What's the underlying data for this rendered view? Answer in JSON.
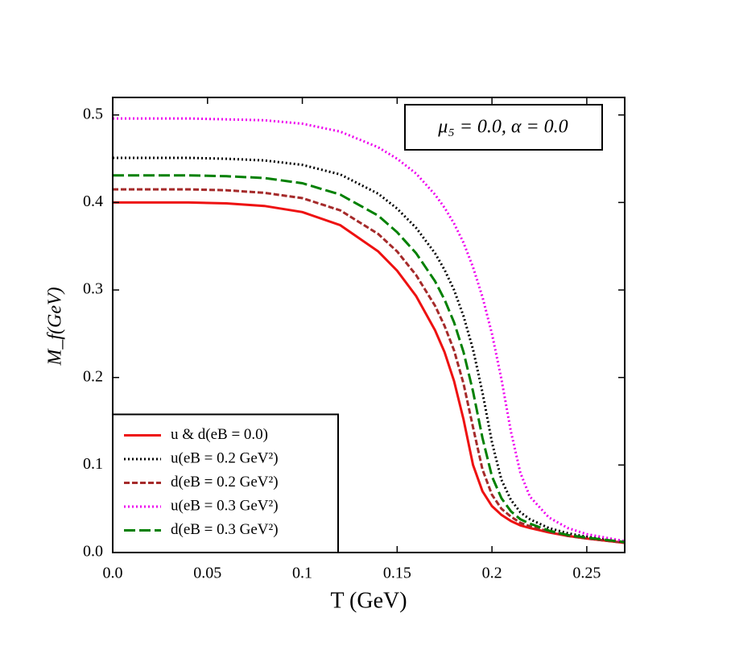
{
  "chart_data": {
    "type": "line",
    "xlabel": "T (GeV)",
    "ylabel": "M_f(GeV)",
    "annotation": "μ₅ = 0.0, α = 0.0",
    "x": [
      0,
      0.02,
      0.04,
      0.06,
      0.08,
      0.1,
      0.12,
      0.14,
      0.15,
      0.16,
      0.17,
      0.175,
      0.18,
      0.185,
      0.19,
      0.195,
      0.2,
      0.205,
      0.21,
      0.215,
      0.22,
      0.23,
      0.24,
      0.25,
      0.27
    ],
    "series": [
      {
        "name": "u & d(eB = 0.0)",
        "color": "#ee1111",
        "dash": "solid",
        "values": [
          0.4,
          0.4,
          0.4,
          0.399,
          0.396,
          0.389,
          0.374,
          0.344,
          0.322,
          0.293,
          0.254,
          0.229,
          0.196,
          0.152,
          0.1,
          0.07,
          0.053,
          0.043,
          0.036,
          0.031,
          0.028,
          0.023,
          0.019,
          0.016,
          0.011
        ]
      },
      {
        "name": "u(eB = 0.2 GeV²)",
        "color": "#000000",
        "dash": "dotted",
        "values": [
          0.451,
          0.451,
          0.451,
          0.45,
          0.448,
          0.443,
          0.432,
          0.41,
          0.393,
          0.371,
          0.342,
          0.323,
          0.3,
          0.27,
          0.232,
          0.183,
          0.126,
          0.083,
          0.06,
          0.046,
          0.038,
          0.028,
          0.022,
          0.018,
          0.012
        ]
      },
      {
        "name": "d(eB = 0.2 GeV²)",
        "color": "#a52a2a",
        "dash": "dashed",
        "values": [
          0.415,
          0.415,
          0.415,
          0.414,
          0.411,
          0.405,
          0.391,
          0.364,
          0.344,
          0.317,
          0.282,
          0.259,
          0.231,
          0.193,
          0.143,
          0.095,
          0.066,
          0.05,
          0.041,
          0.034,
          0.03,
          0.024,
          0.019,
          0.016,
          0.011
        ]
      },
      {
        "name": "u(eB = 0.3 GeV²)",
        "color": "#ee00ee",
        "dash": "dotted",
        "values": [
          0.496,
          0.496,
          0.496,
          0.495,
          0.494,
          0.49,
          0.481,
          0.463,
          0.45,
          0.433,
          0.409,
          0.394,
          0.376,
          0.354,
          0.326,
          0.292,
          0.25,
          0.198,
          0.138,
          0.091,
          0.064,
          0.04,
          0.028,
          0.021,
          0.013
        ]
      },
      {
        "name": "d(eB = 0.3 GeV²)",
        "color": "#008000",
        "dash": "long-dashed",
        "values": [
          0.431,
          0.431,
          0.431,
          0.43,
          0.428,
          0.422,
          0.409,
          0.385,
          0.366,
          0.342,
          0.31,
          0.289,
          0.263,
          0.229,
          0.184,
          0.131,
          0.087,
          0.062,
          0.047,
          0.038,
          0.033,
          0.025,
          0.02,
          0.017,
          0.012
        ]
      }
    ],
    "xlim": [
      0,
      0.27
    ],
    "xticks": [
      {
        "value": 0,
        "label": "0.0"
      },
      0.05,
      0.1,
      0.15,
      0.2,
      0.25
    ],
    "ylim": [
      0,
      0.52
    ],
    "yticks": [
      {
        "value": 0,
        "label": "0.0"
      },
      0.1,
      0.2,
      0.3,
      0.4,
      0.5
    ],
    "legend": "lower left"
  }
}
